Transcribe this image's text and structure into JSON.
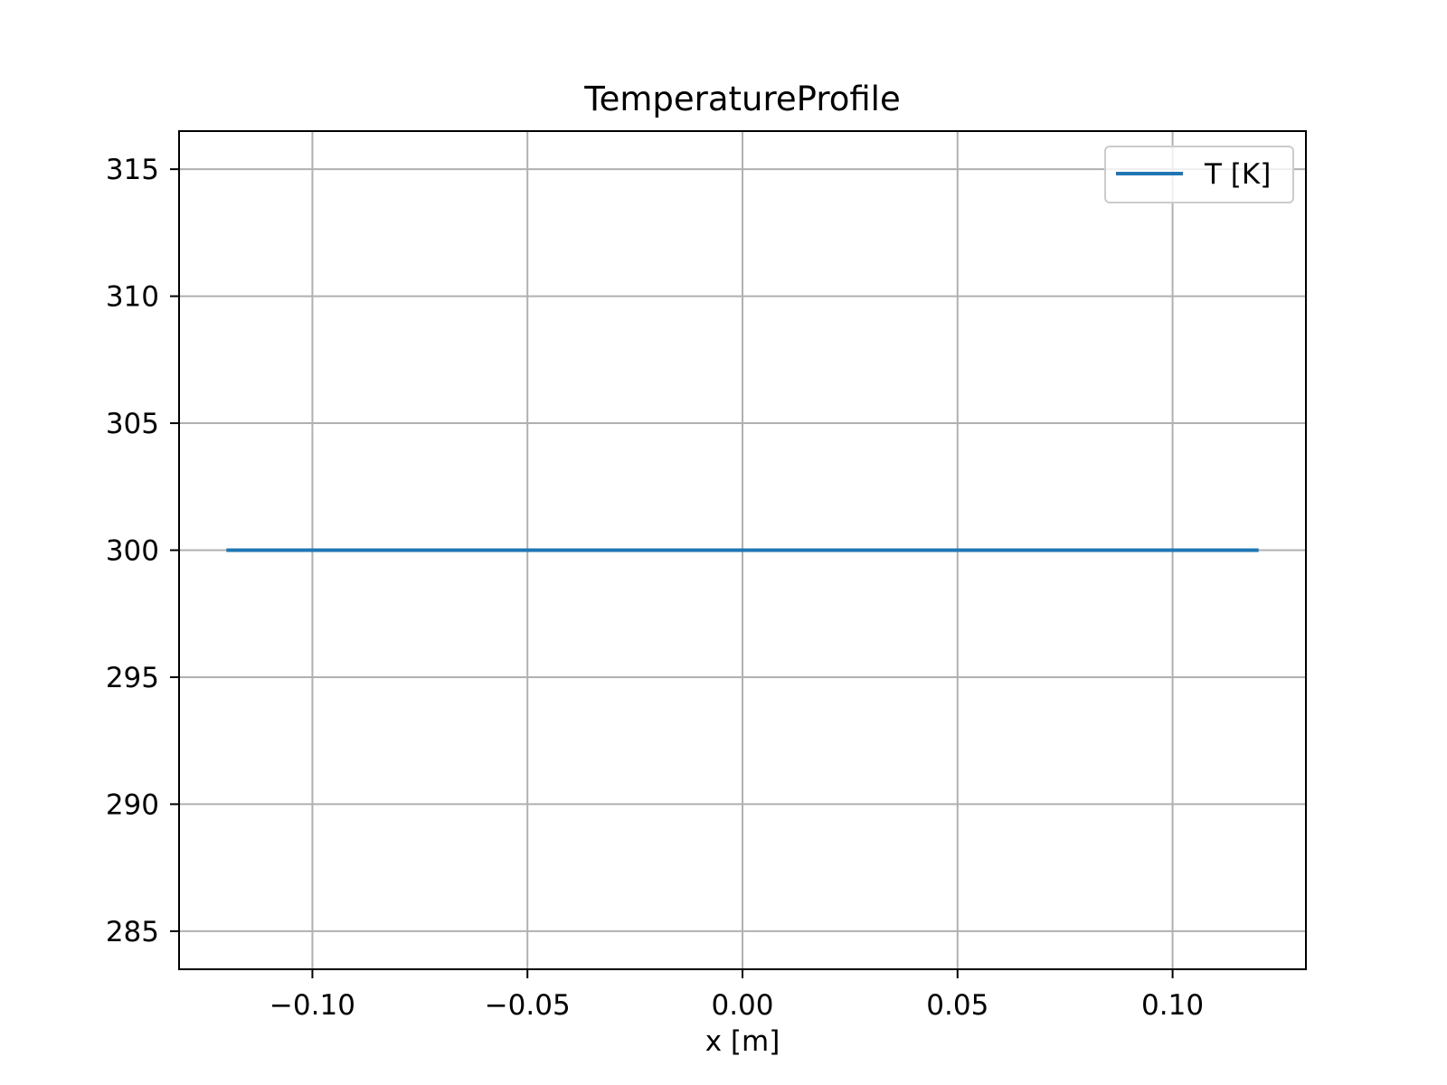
{
  "chart_data": {
    "type": "line",
    "title": "TemperatureProfile",
    "xlabel": "x [m]",
    "ylabel": "",
    "xlim": [
      -0.131,
      0.131
    ],
    "ylim": [
      283.5,
      316.5
    ],
    "x_ticks": [
      -0.1,
      -0.05,
      0.0,
      0.05,
      0.1
    ],
    "x_tick_labels": [
      "−0.10",
      "−0.05",
      "0.00",
      "0.05",
      "0.10"
    ],
    "y_ticks": [
      285,
      290,
      295,
      300,
      305,
      310,
      315
    ],
    "y_tick_labels": [
      "285",
      "290",
      "295",
      "300",
      "305",
      "310",
      "315"
    ],
    "grid": true,
    "legend_position": "upper right",
    "series": [
      {
        "name": "T [K]",
        "color": "#1f77b4",
        "x": [
          -0.12,
          0.12
        ],
        "y": [
          300,
          300
        ]
      }
    ]
  }
}
